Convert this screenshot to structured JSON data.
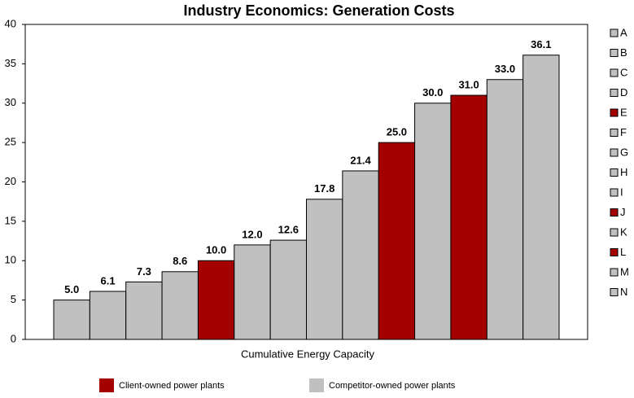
{
  "chart_data": {
    "type": "bar",
    "title": "Industry Economics: Generation Costs",
    "x_label": "Cumulative Energy Capacity",
    "categories": [
      "A",
      "B",
      "C",
      "D",
      "E",
      "F",
      "G",
      "H",
      "I",
      "J",
      "K",
      "L",
      "M",
      "N"
    ],
    "values": [
      5.0,
      6.1,
      7.3,
      8.6,
      10.0,
      12.0,
      12.6,
      17.8,
      21.4,
      25.0,
      30.0,
      31.0,
      33.0,
      36.1
    ],
    "value_labels": [
      "5.0",
      "6.1",
      "7.3",
      "8.6",
      "10.0",
      "12.0",
      "12.6",
      "17.8",
      "21.4",
      "25.0",
      "30.0",
      "31.0",
      "33.0",
      "36.1"
    ],
    "colors": [
      "#c0c0c0",
      "#c0c0c0",
      "#c0c0c0",
      "#c0c0c0",
      "#a50000",
      "#c0c0c0",
      "#c0c0c0",
      "#c0c0c0",
      "#c0c0c0",
      "#a50000",
      "#c0c0c0",
      "#a50000",
      "#c0c0c0",
      "#c0c0c0"
    ],
    "groups": [
      {
        "name": "Client-owned power plants",
        "color": "#a50000"
      },
      {
        "name": "Competitor-owned power plants",
        "color": "#c0c0c0"
      }
    ],
    "ylim": [
      0,
      40
    ],
    "yticks": [
      0,
      5,
      10,
      15,
      20,
      25,
      30,
      35,
      40
    ],
    "grid": false,
    "legend": "right"
  }
}
